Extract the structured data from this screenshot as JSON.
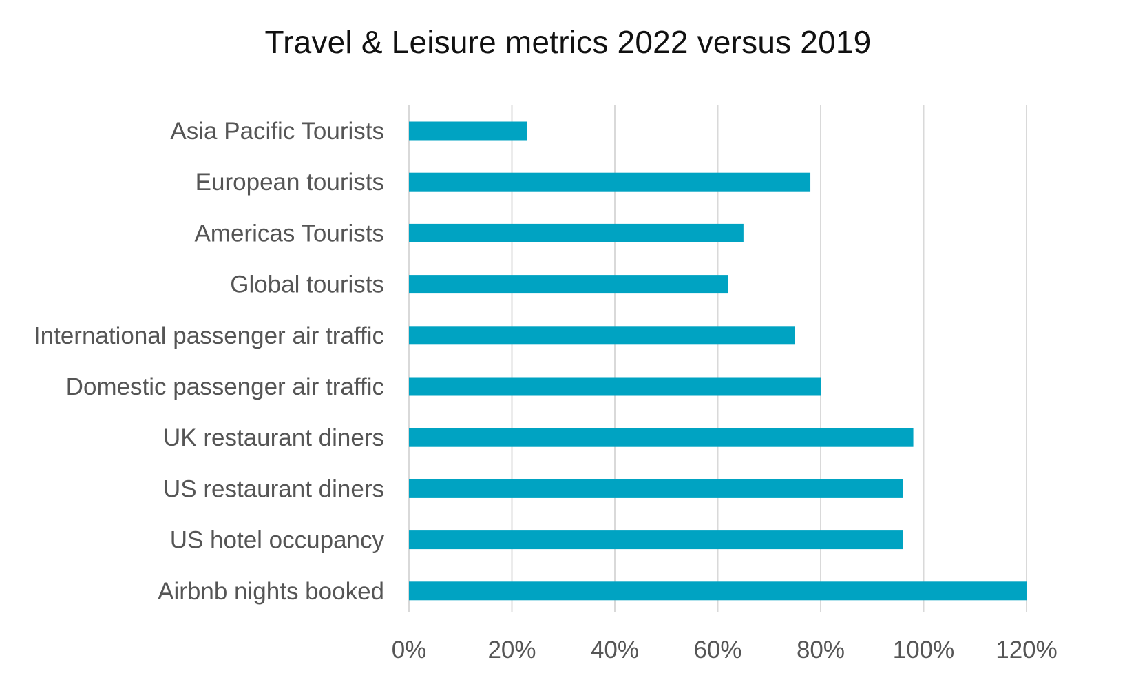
{
  "chart_data": {
    "type": "bar",
    "orientation": "horizontal",
    "title": "Travel & Leisure metrics 2022 versus 2019",
    "xlabel": "",
    "ylabel": "",
    "categories": [
      "Asia Pacific Tourists",
      "European tourists",
      "Americas Tourists",
      "Global tourists",
      "International passenger air traffic",
      "Domestic passenger air traffic",
      "UK restaurant diners",
      "US restaurant diners",
      "US hotel occupancy",
      "Airbnb nights booked"
    ],
    "values": [
      23,
      78,
      65,
      62,
      75,
      80,
      98,
      96,
      96,
      120
    ],
    "xlim": [
      0,
      120
    ],
    "xticks": [
      0,
      20,
      40,
      60,
      80,
      100,
      120
    ],
    "tick_labels": [
      "0%",
      "20%",
      "40%",
      "60%",
      "80%",
      "100%",
      "120%"
    ],
    "grid": "vertical",
    "legend": "none",
    "bar_color": "#00a3c2"
  }
}
